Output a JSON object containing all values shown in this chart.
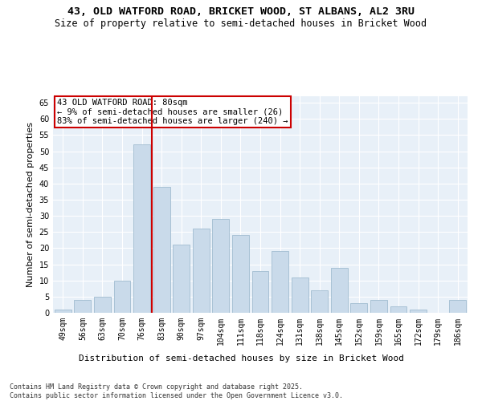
{
  "title_line1": "43, OLD WATFORD ROAD, BRICKET WOOD, ST ALBANS, AL2 3RU",
  "title_line2": "Size of property relative to semi-detached houses in Bricket Wood",
  "xlabel": "Distribution of semi-detached houses by size in Bricket Wood",
  "ylabel": "Number of semi-detached properties",
  "categories": [
    "49sqm",
    "56sqm",
    "63sqm",
    "70sqm",
    "76sqm",
    "83sqm",
    "90sqm",
    "97sqm",
    "104sqm",
    "111sqm",
    "118sqm",
    "124sqm",
    "131sqm",
    "138sqm",
    "145sqm",
    "152sqm",
    "159sqm",
    "165sqm",
    "172sqm",
    "179sqm",
    "186sqm"
  ],
  "values": [
    1,
    4,
    5,
    10,
    52,
    39,
    21,
    26,
    29,
    24,
    13,
    19,
    11,
    7,
    14,
    3,
    4,
    2,
    1,
    0,
    4
  ],
  "bar_color": "#c9daea",
  "bar_edge_color": "#a0bcd0",
  "vline_x_index": 4,
  "vline_color": "#cc0000",
  "annotation_text": "43 OLD WATFORD ROAD: 80sqm\n← 9% of semi-detached houses are smaller (26)\n83% of semi-detached houses are larger (240) →",
  "annotation_box_color": "#ffffff",
  "annotation_box_edge": "#cc0000",
  "ylim": [
    0,
    67
  ],
  "yticks": [
    0,
    5,
    10,
    15,
    20,
    25,
    30,
    35,
    40,
    45,
    50,
    55,
    60,
    65
  ],
  "background_color": "#e8f0f8",
  "footer_text": "Contains HM Land Registry data © Crown copyright and database right 2025.\nContains public sector information licensed under the Open Government Licence v3.0.",
  "grid_color": "#ffffff",
  "title_fontsize": 9.5,
  "subtitle_fontsize": 8.5,
  "axis_label_fontsize": 8,
  "tick_fontsize": 7,
  "annotation_fontsize": 7.5,
  "footer_fontsize": 6
}
